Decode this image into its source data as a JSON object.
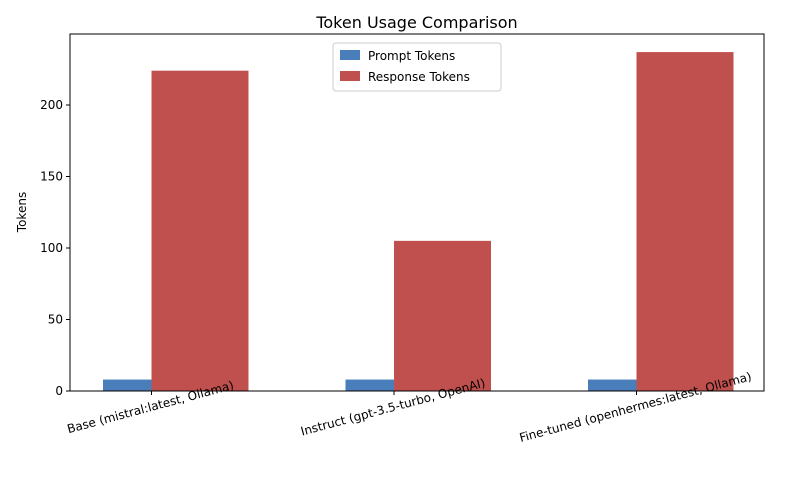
{
  "chart_data": {
    "type": "bar",
    "title": "Token Usage Comparison",
    "xlabel": "",
    "ylabel": "Tokens",
    "categories": [
      "Base (mistral:latest, Ollama)",
      "Instruct (gpt-3.5-turbo, OpenAI)",
      "Fine-tuned (openhermes:latest, Ollama)"
    ],
    "series": [
      {
        "name": "Prompt Tokens",
        "values": [
          8,
          8,
          8
        ],
        "color": "#4a7ebb"
      },
      {
        "name": "Response Tokens",
        "values": [
          224,
          105,
          237
        ],
        "color": "#c0504d"
      }
    ],
    "ylim": [
      0,
      249.65
    ],
    "yticks": [
      0,
      50,
      100,
      150,
      200
    ],
    "grid": false,
    "legend": "top-center"
  }
}
